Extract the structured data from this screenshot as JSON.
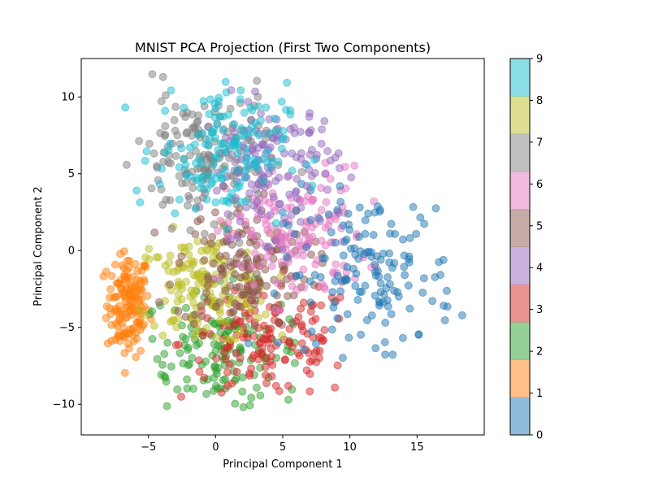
{
  "chart_data": {
    "type": "scatter",
    "title": "MNIST PCA Projection (First Two Components)",
    "xlabel": "Principal Component 1",
    "ylabel": "Principal Component 2",
    "xlim": [
      -10,
      20
    ],
    "ylim": [
      -12,
      12.5
    ],
    "xticks": [
      -5,
      0,
      5,
      10,
      15
    ],
    "yticks": [
      -10,
      -5,
      0,
      5,
      10
    ],
    "xtick_labels": [
      "−5",
      "0",
      "5",
      "10",
      "15"
    ],
    "ytick_labels": [
      "−10",
      "−5",
      "0",
      "5",
      "10"
    ],
    "grid": false,
    "legend": "none",
    "point_alpha": 0.5,
    "colorbar": {
      "min": 0,
      "max": 9,
      "ticks": [
        0,
        1,
        2,
        3,
        4,
        5,
        6,
        7,
        8,
        9
      ],
      "tick_labels": [
        "0",
        "1",
        "2",
        "3",
        "4",
        "5",
        "6",
        "7",
        "8",
        "9"
      ],
      "colors": [
        "#1f77b4",
        "#ff7f0e",
        "#2ca02c",
        "#d62728",
        "#9467bd",
        "#8c564b",
        "#e377c2",
        "#7f7f7f",
        "#bcbd22",
        "#17becf"
      ]
    },
    "series": [
      {
        "label_value": 0,
        "color": "#1f77b4",
        "center": [
          11.5,
          -1.5
        ],
        "spread": [
          3.2,
          2.6
        ],
        "range_x": [
          2,
          18.5
        ],
        "range_y": [
          -7,
          5
        ]
      },
      {
        "label_value": 1,
        "color": "#ff7f0e",
        "center": [
          -6.5,
          -3.5
        ],
        "spread": [
          0.8,
          1.7
        ],
        "range_x": [
          -8.8,
          -4.5
        ],
        "range_y": [
          -8,
          0
        ]
      },
      {
        "label_value": 2,
        "color": "#2ca02c",
        "center": [
          0.5,
          -6.5
        ],
        "spread": [
          3.0,
          2.0
        ],
        "range_x": [
          -5,
          6
        ],
        "range_y": [
          -10.5,
          -1
        ]
      },
      {
        "label_value": 3,
        "color": "#d62728",
        "center": [
          4.0,
          -6.0
        ],
        "spread": [
          3.3,
          1.9
        ],
        "range_x": [
          -3,
          11
        ],
        "range_y": [
          -10.5,
          -1
        ]
      },
      {
        "label_value": 4,
        "color": "#9467bd",
        "center": [
          4.0,
          5.5
        ],
        "spread": [
          2.6,
          2.2
        ],
        "range_x": [
          -3,
          11
        ],
        "range_y": [
          0,
          10.5
        ]
      },
      {
        "label_value": 5,
        "color": "#8c564b",
        "center": [
          2.0,
          -1.0
        ],
        "spread": [
          2.5,
          2.0
        ],
        "range_x": [
          -5,
          9
        ],
        "range_y": [
          -7,
          4
        ]
      },
      {
        "label_value": 6,
        "color": "#e377c2",
        "center": [
          6.0,
          1.0
        ],
        "spread": [
          2.6,
          2.2
        ],
        "range_x": [
          -4,
          12
        ],
        "range_y": [
          -4,
          6
        ]
      },
      {
        "label_value": 7,
        "color": "#7f7f7f",
        "center": [
          -1.0,
          6.0
        ],
        "spread": [
          2.5,
          2.2
        ],
        "range_x": [
          -7,
          9
        ],
        "range_y": [
          0,
          11.5
        ]
      },
      {
        "label_value": 8,
        "color": "#bcbd22",
        "center": [
          -1.0,
          -2.5
        ],
        "spread": [
          2.5,
          1.8
        ],
        "range_x": [
          -6,
          5
        ],
        "range_y": [
          -6,
          2
        ]
      },
      {
        "label_value": 9,
        "color": "#17becf",
        "center": [
          0.5,
          6.5
        ],
        "spread": [
          2.4,
          2.2
        ],
        "range_x": [
          -7,
          12
        ],
        "range_y": [
          1,
          11
        ]
      }
    ]
  }
}
